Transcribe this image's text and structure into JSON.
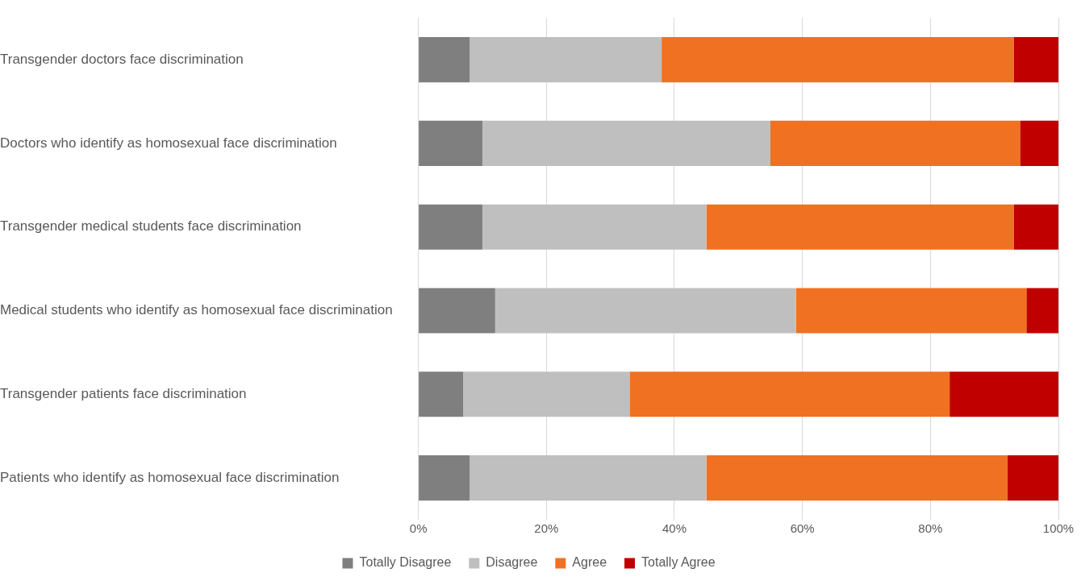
{
  "chart_data": {
    "type": "bar",
    "orientation": "horizontal",
    "stacked": true,
    "categories": [
      "Transgender doctors face discrimination",
      "Doctors who identify as homosexual face discrimination",
      "Transgender medical students face discrimination",
      "Medical students who identify as homosexual face discrimination",
      "Transgender patients face discrimination",
      "Patients who identify as homosexual face discrimination"
    ],
    "series": [
      {
        "name": "Totally Disagree",
        "color": "#7f7f7f",
        "values": [
          8,
          10,
          10,
          12,
          7,
          8
        ]
      },
      {
        "name": "Disagree",
        "color": "#bfbfbf",
        "values": [
          30,
          45,
          35,
          47,
          26,
          37
        ]
      },
      {
        "name": "Agree",
        "color": "#f07122",
        "values": [
          55,
          39,
          48,
          36,
          50,
          47
        ]
      },
      {
        "name": "Totally Agree",
        "color": "#c00000",
        "values": [
          7,
          6,
          7,
          5,
          17,
          8
        ]
      }
    ],
    "xlim": [
      0,
      100
    ],
    "xticks": [
      {
        "value": 0,
        "label": "0%"
      },
      {
        "value": 20,
        "label": "20%"
      },
      {
        "value": 40,
        "label": "40%"
      },
      {
        "value": 60,
        "label": "60%"
      },
      {
        "value": 80,
        "label": "80%"
      },
      {
        "value": 100,
        "label": "100%"
      }
    ],
    "grid": "x",
    "legend": "bottom"
  }
}
